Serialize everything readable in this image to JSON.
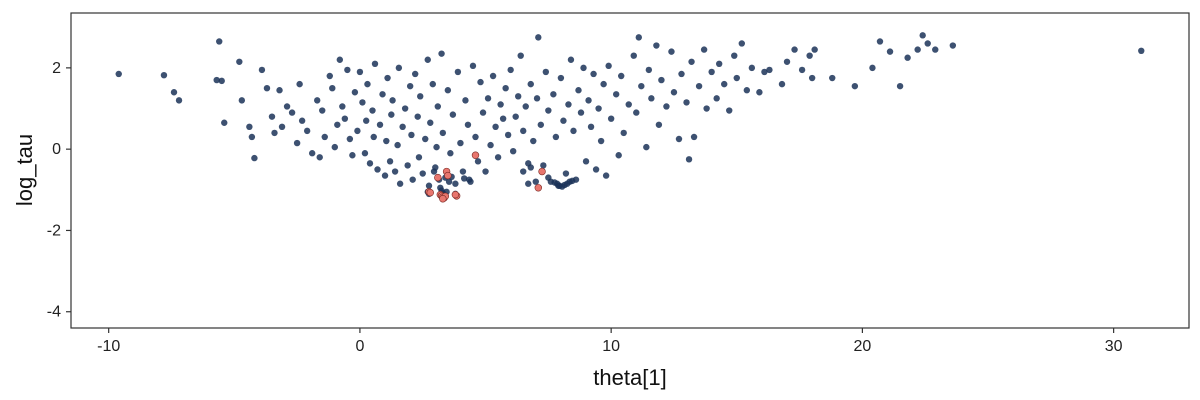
{
  "chart_data": {
    "type": "scatter",
    "title": "",
    "xlabel": "theta[1]",
    "ylabel": "log_tau",
    "xlim": [
      -11.5,
      33
    ],
    "ylim": [
      -4.4,
      3.35
    ],
    "xticks": [
      -10,
      0,
      10,
      20,
      30
    ],
    "yticks": [
      2,
      0,
      -2,
      -4
    ],
    "xtick_labels": [
      "-10",
      "0",
      "10",
      "20",
      "30"
    ],
    "ytick_labels": [
      "2",
      "0",
      "-2",
      "-4"
    ],
    "grid": false,
    "legend": "none",
    "colors": {
      "main": "#1b3358",
      "highlight": "#e8766e",
      "highlight_edge": "#7a2a25",
      "frame": "#333333"
    },
    "series": [
      {
        "points": [
          [
            -9.6,
            1.85
          ],
          [
            -7.8,
            1.82
          ],
          [
            -7.4,
            1.4
          ],
          [
            -7.2,
            1.2
          ],
          [
            -5.6,
            2.65
          ],
          [
            -5.7,
            1.7
          ],
          [
            -5.5,
            1.68
          ],
          [
            -5.4,
            0.65
          ],
          [
            -4.8,
            2.15
          ],
          [
            -4.7,
            1.2
          ],
          [
            -4.4,
            0.55
          ],
          [
            -4.3,
            0.3
          ],
          [
            -4.2,
            -0.22
          ],
          [
            -3.9,
            1.95
          ],
          [
            -3.7,
            1.5
          ],
          [
            -3.5,
            0.8
          ],
          [
            -3.4,
            0.4
          ],
          [
            -3.2,
            1.45
          ],
          [
            -3.1,
            0.55
          ],
          [
            -2.9,
            1.05
          ],
          [
            -2.7,
            0.9
          ],
          [
            -2.5,
            0.15
          ],
          [
            -2.4,
            1.6
          ],
          [
            -2.3,
            0.7
          ],
          [
            -2.1,
            0.45
          ],
          [
            -1.9,
            -0.1
          ],
          [
            -1.7,
            1.2
          ],
          [
            -1.6,
            -0.2
          ],
          [
            -1.5,
            0.95
          ],
          [
            -1.4,
            0.3
          ],
          [
            -1.2,
            1.8
          ],
          [
            -1.1,
            1.5
          ],
          [
            -1.0,
            0.05
          ],
          [
            -0.9,
            0.6
          ],
          [
            -0.8,
            2.2
          ],
          [
            -0.7,
            1.05
          ],
          [
            -0.6,
            0.75
          ],
          [
            -0.5,
            1.95
          ],
          [
            -0.4,
            0.25
          ],
          [
            -0.3,
            -0.15
          ],
          [
            -0.2,
            1.4
          ],
          [
            -0.1,
            0.45
          ],
          [
            0.0,
            1.9
          ],
          [
            0.1,
            1.15
          ],
          [
            0.2,
            -0.1
          ],
          [
            0.25,
            0.7
          ],
          [
            0.3,
            1.6
          ],
          [
            0.4,
            -0.35
          ],
          [
            0.5,
            0.95
          ],
          [
            0.55,
            0.3
          ],
          [
            0.6,
            2.1
          ],
          [
            0.7,
            -0.5
          ],
          [
            0.8,
            0.6
          ],
          [
            0.9,
            1.35
          ],
          [
            1.0,
            -0.65
          ],
          [
            1.05,
            0.2
          ],
          [
            1.1,
            1.75
          ],
          [
            1.2,
            -0.3
          ],
          [
            1.25,
            0.85
          ],
          [
            1.3,
            1.2
          ],
          [
            1.4,
            -0.55
          ],
          [
            1.5,
            0.1
          ],
          [
            1.55,
            2.0
          ],
          [
            1.6,
            -0.85
          ],
          [
            1.7,
            0.55
          ],
          [
            1.8,
            1.0
          ],
          [
            1.9,
            -0.4
          ],
          [
            2.0,
            1.55
          ],
          [
            2.05,
            0.35
          ],
          [
            2.1,
            -0.75
          ],
          [
            2.2,
            1.85
          ],
          [
            2.3,
            0.8
          ],
          [
            2.35,
            -0.2
          ],
          [
            2.4,
            1.3
          ],
          [
            2.5,
            -0.6
          ],
          [
            2.6,
            0.25
          ],
          [
            2.7,
            2.2
          ],
          [
            2.75,
            -0.9
          ],
          [
            2.8,
            0.65
          ],
          [
            2.9,
            1.6
          ],
          [
            3.0,
            -0.45
          ],
          [
            3.05,
            0.05
          ],
          [
            3.1,
            1.05
          ],
          [
            3.2,
            -0.95
          ],
          [
            3.25,
            2.35
          ],
          [
            3.3,
            0.4
          ],
          [
            3.4,
            -0.7
          ],
          [
            3.5,
            1.45
          ],
          [
            3.6,
            -0.1
          ],
          [
            3.7,
            0.85
          ],
          [
            3.8,
            -0.85
          ],
          [
            3.9,
            1.9
          ],
          [
            4.0,
            0.15
          ],
          [
            4.1,
            -0.55
          ],
          [
            4.2,
            1.2
          ],
          [
            4.3,
            0.6
          ],
          [
            4.4,
            -0.8
          ],
          [
            4.5,
            2.05
          ],
          [
            4.6,
            0.3
          ],
          [
            4.7,
            -0.3
          ],
          [
            4.8,
            1.65
          ],
          [
            4.9,
            0.9
          ],
          [
            5.0,
            -0.55
          ],
          [
            5.1,
            1.25
          ],
          [
            5.2,
            0.1
          ],
          [
            5.3,
            1.8
          ],
          [
            5.4,
            0.55
          ],
          [
            5.5,
            -0.2
          ],
          [
            5.6,
            1.1
          ],
          [
            5.7,
            0.75
          ],
          [
            5.8,
            1.5
          ],
          [
            5.9,
            0.35
          ],
          [
            6.0,
            1.95
          ],
          [
            6.1,
            -0.05
          ],
          [
            6.2,
            0.8
          ],
          [
            6.3,
            1.3
          ],
          [
            6.4,
            2.3
          ],
          [
            6.5,
            0.45
          ],
          [
            6.6,
            1.05
          ],
          [
            6.7,
            -0.35
          ],
          [
            6.8,
            1.6
          ],
          [
            6.9,
            0.2
          ],
          [
            7.0,
            -0.8
          ],
          [
            7.05,
            1.25
          ],
          [
            7.1,
            2.75
          ],
          [
            7.2,
            0.6
          ],
          [
            7.3,
            -0.4
          ],
          [
            7.4,
            1.9
          ],
          [
            7.5,
            0.95
          ],
          [
            7.6,
            -0.8
          ],
          [
            7.7,
            1.35
          ],
          [
            7.8,
            0.3
          ],
          [
            7.9,
            -0.9
          ],
          [
            8.0,
            1.75
          ],
          [
            8.1,
            0.7
          ],
          [
            8.2,
            -0.6
          ],
          [
            8.3,
            1.1
          ],
          [
            8.4,
            2.2
          ],
          [
            8.5,
            0.45
          ],
          [
            8.6,
            -0.75
          ],
          [
            8.7,
            1.45
          ],
          [
            8.8,
            0.9
          ],
          [
            8.9,
            2.0
          ],
          [
            9.0,
            -0.3
          ],
          [
            9.1,
            1.2
          ],
          [
            9.2,
            0.55
          ],
          [
            9.3,
            1.85
          ],
          [
            9.4,
            -0.5
          ],
          [
            9.5,
            1.0
          ],
          [
            9.6,
            0.2
          ],
          [
            9.7,
            1.6
          ],
          [
            9.8,
            -0.65
          ],
          [
            9.9,
            2.05
          ],
          [
            10.0,
            0.75
          ],
          [
            10.2,
            1.35
          ],
          [
            10.3,
            -0.15
          ],
          [
            10.4,
            1.8
          ],
          [
            10.5,
            0.4
          ],
          [
            10.7,
            1.1
          ],
          [
            10.9,
            2.3
          ],
          [
            11.0,
            0.9
          ],
          [
            11.1,
            2.75
          ],
          [
            11.2,
            1.55
          ],
          [
            11.4,
            0.05
          ],
          [
            11.5,
            1.95
          ],
          [
            11.6,
            1.25
          ],
          [
            11.8,
            2.55
          ],
          [
            11.9,
            0.6
          ],
          [
            12.0,
            1.7
          ],
          [
            12.2,
            1.05
          ],
          [
            12.4,
            2.4
          ],
          [
            12.5,
            1.4
          ],
          [
            12.7,
            0.25
          ],
          [
            12.8,
            1.85
          ],
          [
            13.0,
            1.15
          ],
          [
            13.1,
            -0.25
          ],
          [
            13.2,
            2.15
          ],
          [
            13.3,
            0.3
          ],
          [
            13.5,
            1.55
          ],
          [
            13.7,
            2.45
          ],
          [
            13.8,
            1.0
          ],
          [
            14.0,
            1.9
          ],
          [
            14.2,
            1.25
          ],
          [
            14.3,
            2.1
          ],
          [
            14.5,
            1.6
          ],
          [
            14.7,
            0.95
          ],
          [
            14.9,
            2.3
          ],
          [
            15.0,
            1.75
          ],
          [
            15.2,
            2.6
          ],
          [
            15.4,
            1.45
          ],
          [
            15.6,
            2.0
          ],
          [
            15.9,
            1.4
          ],
          [
            16.1,
            1.9
          ],
          [
            16.3,
            1.95
          ],
          [
            16.8,
            1.6
          ],
          [
            17.0,
            2.15
          ],
          [
            17.3,
            2.45
          ],
          [
            17.6,
            1.95
          ],
          [
            17.9,
            2.3
          ],
          [
            18.1,
            2.45
          ],
          [
            18.0,
            1.75
          ],
          [
            18.8,
            1.75
          ],
          [
            19.7,
            1.55
          ],
          [
            20.4,
            2.0
          ],
          [
            20.7,
            2.65
          ],
          [
            21.1,
            2.4
          ],
          [
            21.5,
            1.55
          ],
          [
            21.8,
            2.25
          ],
          [
            22.2,
            2.45
          ],
          [
            22.4,
            2.8
          ],
          [
            22.6,
            2.6
          ],
          [
            22.9,
            2.45
          ],
          [
            23.6,
            2.55
          ],
          [
            31.1,
            2.42
          ],
          [
            2.7,
            -1.05
          ],
          [
            2.75,
            -1.1
          ],
          [
            3.25,
            -1.02
          ],
          [
            3.3,
            -1.08
          ],
          [
            3.35,
            -1.12
          ],
          [
            3.45,
            -1.05
          ],
          [
            3.8,
            -1.1
          ],
          [
            7.85,
            -0.85
          ],
          [
            7.95,
            -0.9
          ],
          [
            8.05,
            -0.92
          ],
          [
            8.15,
            -0.88
          ],
          [
            8.25,
            -0.85
          ],
          [
            8.35,
            -0.8
          ],
          [
            8.45,
            -0.78
          ],
          [
            7.75,
            -0.82
          ],
          [
            6.7,
            -0.85
          ],
          [
            2.95,
            -0.55
          ],
          [
            3.15,
            -0.75
          ],
          [
            3.55,
            -0.8
          ],
          [
            3.65,
            -0.68
          ],
          [
            4.15,
            -0.72
          ],
          [
            4.35,
            -0.75
          ],
          [
            6.5,
            -0.55
          ],
          [
            6.8,
            -0.45
          ],
          [
            7.5,
            -0.7
          ]
        ]
      },
      {
        "highlighted": true,
        "points": [
          [
            2.75,
            -1.05
          ],
          [
            2.8,
            -1.07
          ],
          [
            3.2,
            -1.12
          ],
          [
            3.25,
            -1.15
          ],
          [
            3.3,
            -1.18
          ],
          [
            3.35,
            -1.2
          ],
          [
            3.4,
            -1.16
          ],
          [
            3.3,
            -1.22
          ],
          [
            3.85,
            -1.15
          ],
          [
            3.8,
            -1.12
          ],
          [
            3.45,
            -0.55
          ],
          [
            3.5,
            -0.65
          ],
          [
            4.6,
            -0.15
          ],
          [
            7.25,
            -0.55
          ],
          [
            7.1,
            -0.95
          ],
          [
            3.1,
            -0.7
          ]
        ]
      }
    ]
  }
}
